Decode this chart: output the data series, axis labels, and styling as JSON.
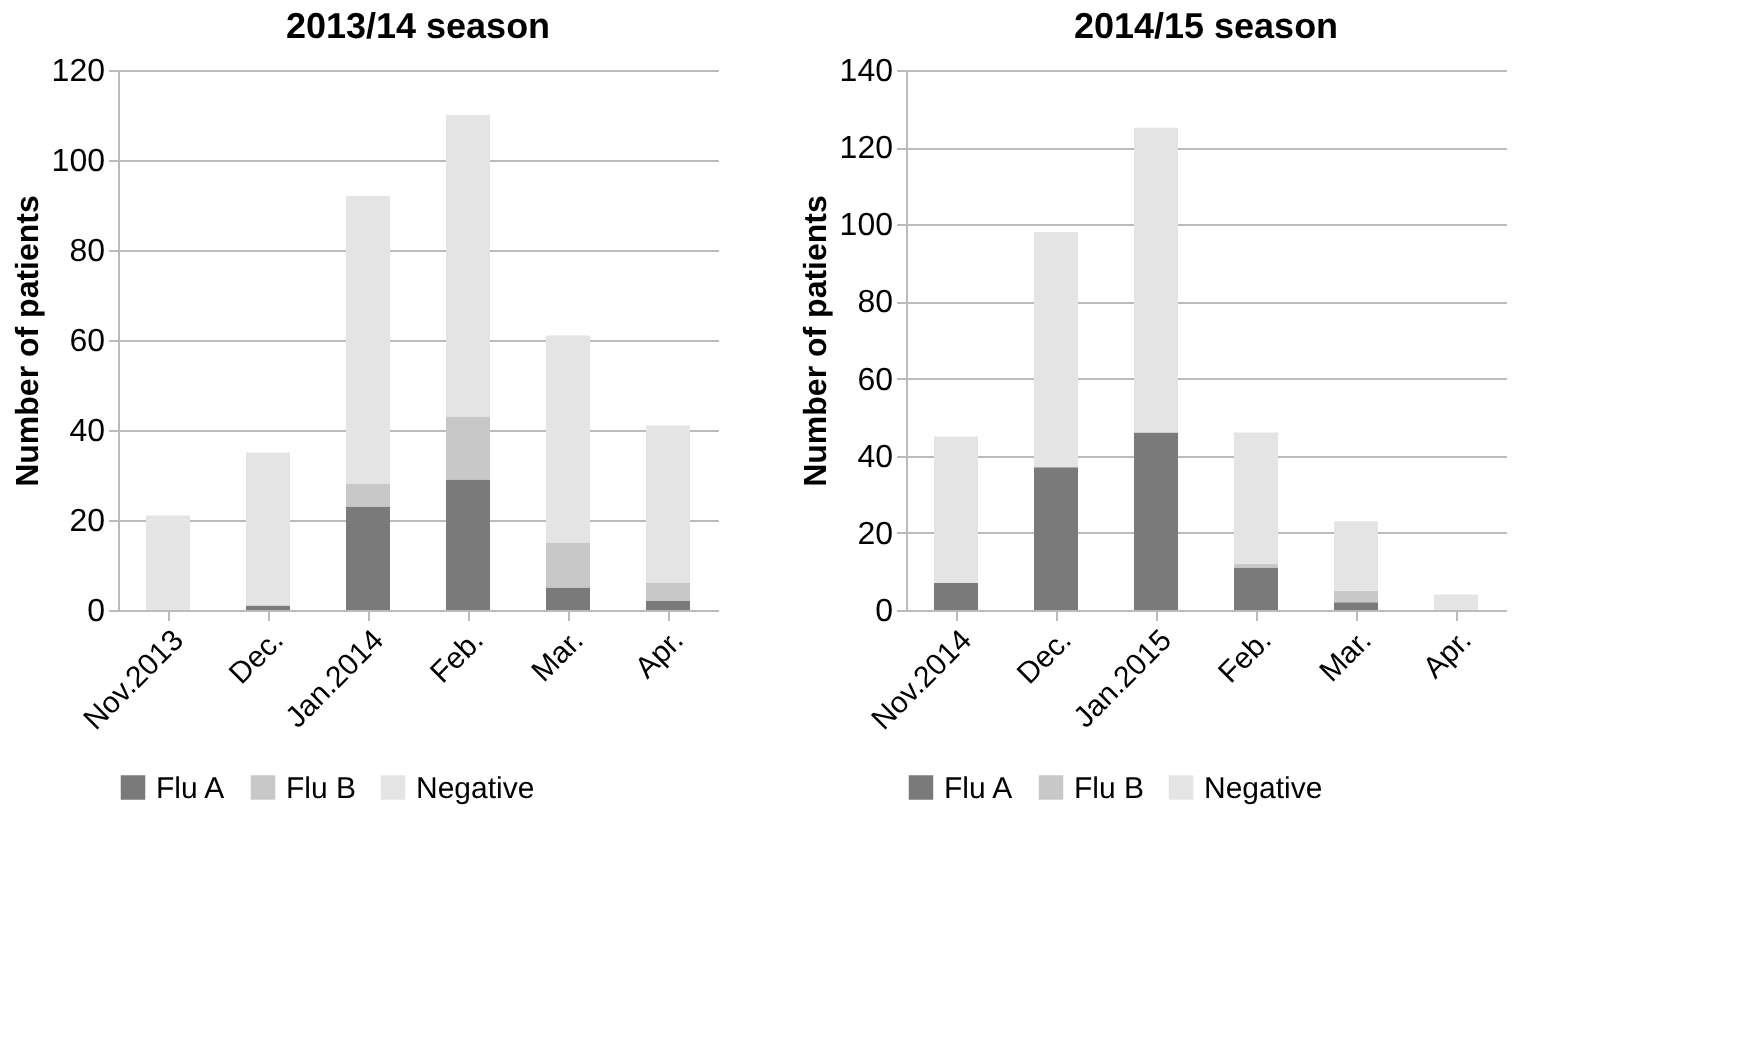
{
  "chart_data": [
    {
      "type": "bar",
      "title": "2013/14   season",
      "ylabel": "Number of patients",
      "stacked": true,
      "categories": [
        "Nov.2013",
        "Dec.",
        "Jan.2014",
        "Feb.",
        "Mar.",
        "Apr."
      ],
      "ylim": [
        0,
        120
      ],
      "yticks": [
        0,
        20,
        40,
        60,
        80,
        100,
        120
      ],
      "grid": "y",
      "legend": "bottom",
      "series": [
        {
          "name": "Flu A",
          "color": "#7a7a7a",
          "values": [
            0,
            1,
            23,
            29,
            5,
            2
          ]
        },
        {
          "name": "Flu B",
          "color": "#c8c8c8",
          "values": [
            0,
            0,
            5,
            14,
            10,
            4
          ]
        },
        {
          "name": "Negative",
          "color": "#e4e4e4",
          "values": [
            21,
            34,
            64,
            67,
            46,
            35
          ]
        }
      ]
    },
    {
      "type": "bar",
      "title": "2014/15 season",
      "ylabel": "Number of patients",
      "stacked": true,
      "categories": [
        "Nov.2014",
        "Dec.",
        "Jan.2015",
        "Feb.",
        "Mar.",
        "Apr."
      ],
      "ylim": [
        0,
        140
      ],
      "yticks": [
        0,
        20,
        40,
        60,
        80,
        100,
        120,
        140
      ],
      "grid": "y",
      "legend": "bottom",
      "series": [
        {
          "name": "Flu A",
          "color": "#7a7a7a",
          "values": [
            7,
            37,
            46,
            11,
            2,
            0
          ]
        },
        {
          "name": "Flu B",
          "color": "#c8c8c8",
          "values": [
            0,
            0,
            0,
            1,
            3,
            0
          ]
        },
        {
          "name": "Negative",
          "color": "#e4e4e4",
          "values": [
            38,
            61,
            79,
            34,
            18,
            4
          ]
        }
      ]
    }
  ]
}
